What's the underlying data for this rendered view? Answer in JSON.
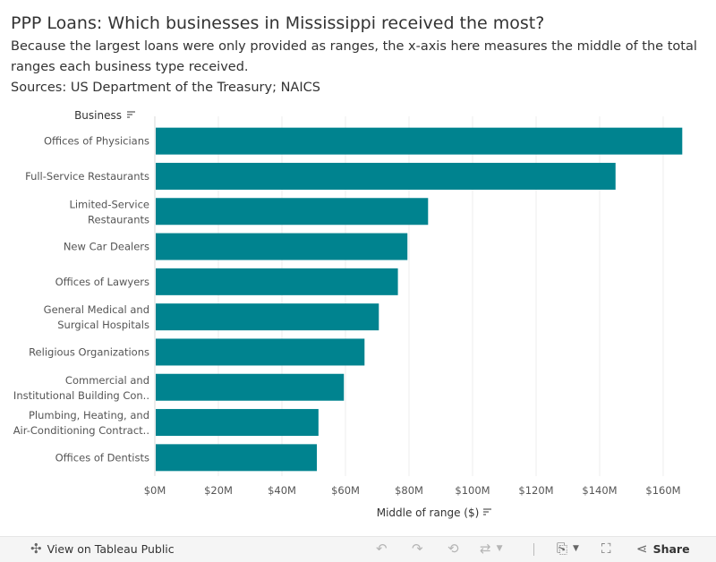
{
  "header": {
    "title": "PPP Loans: Which businesses in Mississippi received the most?",
    "subtitle": "Because the largest loans were only provided as ranges, the x-axis here measures the middle of the total ranges each business type received.",
    "sources": "Sources: US Department of the Treasury; NAICS"
  },
  "chart_data": {
    "type": "bar",
    "orientation": "horizontal",
    "y_header": "Business",
    "xlabel": "Middle of range ($)",
    "xlim": [
      0,
      170
    ],
    "x_unit": "millions of dollars",
    "x_ticks": [
      0,
      20,
      40,
      60,
      80,
      100,
      120,
      140,
      160
    ],
    "x_tick_labels": [
      "$0M",
      "$20M",
      "$40M",
      "$60M",
      "$80M",
      "$100M",
      "$120M",
      "$140M",
      "$160M"
    ],
    "categories": [
      [
        "Offices of Physicians"
      ],
      [
        "Full-Service Restaurants"
      ],
      [
        "Limited-Service",
        "Restaurants"
      ],
      [
        "New Car Dealers"
      ],
      [
        "Offices of Lawyers"
      ],
      [
        "General Medical and",
        "Surgical Hospitals"
      ],
      [
        "Religious Organizations"
      ],
      [
        "Commercial and",
        "Institutional Building Con.."
      ],
      [
        "Plumbing, Heating, and",
        "Air-Conditioning Contract.."
      ],
      [
        "Offices of Dentists"
      ]
    ],
    "values": [
      166,
      145,
      86,
      79.5,
      76.5,
      70.5,
      66,
      59.5,
      51.5,
      51
    ],
    "bar_color": "#00838f",
    "grid": true
  },
  "toolbar": {
    "view_label": "View on Tableau Public",
    "share_label": "Share"
  }
}
